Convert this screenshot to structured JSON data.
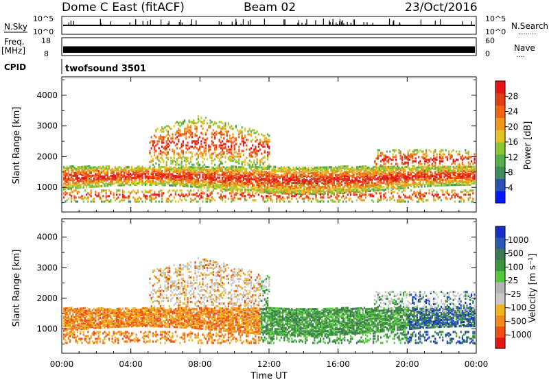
{
  "header": {
    "station": "Dome C East (fitACF)",
    "beam": "Beam 02",
    "date": "23/Oct/2016"
  },
  "top_panels": {
    "nsky_label": "N.Sky",
    "nsky_tick_hi": "10^5",
    "nsky_tick_lo": "10^0",
    "nsearch_label": "N.Search",
    "nsearch_tick_hi": "10^5",
    "nsearch_tick_lo": "10^0",
    "freq_label_1": "Freq.",
    "freq_label_2": "[MHz]",
    "freq_tick_hi": "18",
    "freq_tick_lo": "8",
    "nave_label": "Nave",
    "nave_tick_hi": "60",
    "nave_tick_lo": "0",
    "cpid_label": "CPID",
    "cpid_value": "twofsound 3501",
    "dots": "........",
    "dots_short": "...."
  },
  "chart_data": [
    {
      "type": "heatmap",
      "name": "power",
      "ylabel": "Slant Range [km]",
      "yticks": [
        "1000",
        "2000",
        "3000",
        "4000"
      ],
      "ylim": [
        200,
        4600
      ],
      "colorbar_label": "Power [dB]",
      "colorbar_ticks": [
        "4",
        "8",
        "12",
        "16",
        "20",
        "24",
        "28"
      ],
      "colorbar_colors": [
        "#0018ff",
        "#2a52b4",
        "#3f8c5e",
        "#55b04b",
        "#8cc832",
        "#e6c31e",
        "#f09619",
        "#f06414",
        "#e63c14",
        "#e61414"
      ]
    },
    {
      "type": "heatmap",
      "name": "velocity",
      "ylabel": "Slant Range [km]",
      "yticks": [
        "1000",
        "2000",
        "3000",
        "4000"
      ],
      "ylim": [
        200,
        4600
      ],
      "xlabel": "Time UT",
      "xticks": [
        "00:00",
        "04:00",
        "08:00",
        "12:00",
        "16:00",
        "20:00",
        "00:00"
      ],
      "colorbar_label": "Velocity [m s⁻¹]",
      "colorbar_ticks": [
        "-1000",
        "-500",
        "-100",
        "-25",
        "25",
        "100",
        "500",
        "1000"
      ],
      "colorbar_colors": [
        "#e61414",
        "#f05014",
        "#f08c1e",
        "#f0b41e",
        "#c8c8c8",
        "#b4b4b4",
        "#55c83c",
        "#3c963c",
        "#3c7850",
        "#285ab4",
        "#1430c8"
      ]
    }
  ],
  "colors": {
    "axis": "#000000",
    "background": "#ffffff"
  }
}
